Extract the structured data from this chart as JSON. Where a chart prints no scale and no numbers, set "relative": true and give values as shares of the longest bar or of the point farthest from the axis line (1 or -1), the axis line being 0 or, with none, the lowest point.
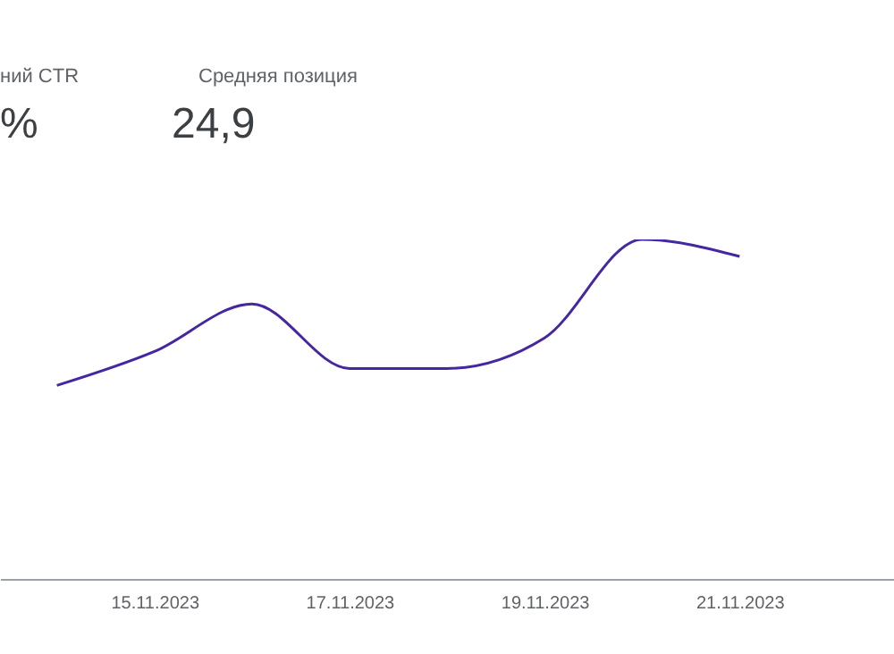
{
  "chart_data": [
    {
      "type": "other",
      "annotations": [
        "ний CTR",
        "%"
      ]
    },
    {
      "type": "other",
      "title": "Средняя позиция",
      "annotations": [
        "24,9"
      ]
    },
    {
      "type": "line",
      "x": [
        "2023-11-14",
        "2023-11-15",
        "2023-11-16",
        "2023-11-17",
        "2023-11-18",
        "2023-11-19",
        "2023-11-20",
        "2023-11-21"
      ],
      "series": [
        {
          "color": "#4527a0",
          "values": [
            0.57,
            0.67,
            0.81,
            0.62,
            0.62,
            0.71,
            1,
            0.95
          ]
        }
      ],
      "relative": true,
      "xlim": [
        "2023-11-13T10:00",
        "2023-11-22T14:00"
      ],
      "xticks": [
        {
          "value": "2023-11-15",
          "label": "15.11.2023"
        },
        {
          "value": "2023-11-17",
          "label": "17.11.2023"
        },
        {
          "value": "2023-11-19",
          "label": "19.11.2023"
        },
        {
          "value": "2023-11-21",
          "label": "21.11.2023"
        }
      ]
    }
  ]
}
